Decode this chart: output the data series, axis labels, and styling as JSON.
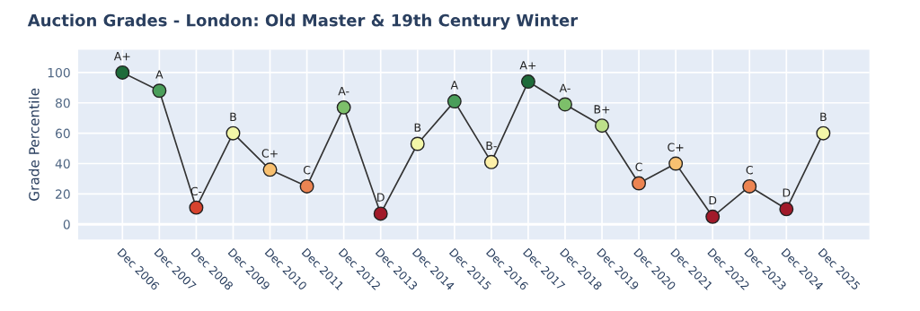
{
  "chart_data": {
    "type": "line",
    "title": "Auction Grades - London: Old Master & 19th Century Winter",
    "ylabel": "Grade Percentile",
    "categories": [
      "Dec 2006",
      "Dec 2007",
      "Dec 2008",
      "Dec 2009",
      "Dec 2010",
      "Dec 2011",
      "Dec 2012",
      "Dec 2013",
      "Dec 2014",
      "Dec 2015",
      "Dec 2016",
      "Dec 2017",
      "Dec 2018",
      "Dec 2019",
      "Dec 2020",
      "Dec 2021",
      "Dec 2022",
      "Dec 2023",
      "Dec 2024",
      "Dec 2025"
    ],
    "series": [
      {
        "color": "#333333",
        "values": [
          100,
          88,
          11,
          60,
          36,
          25,
          77,
          7,
          53,
          81,
          41,
          94,
          79,
          65,
          27,
          40,
          5,
          25,
          10,
          60
        ],
        "value_labels": [
          "A+",
          "A",
          "C-",
          "B",
          "C+",
          "C",
          "A-",
          "D",
          "B",
          "A",
          "B-",
          "A+",
          "A-",
          "B+",
          "C",
          "C+",
          "D",
          "C",
          "D",
          "B"
        ],
        "colors": [
          "#1e6b3a",
          "#4a9e5a",
          "#d7432e",
          "#f3f7a8",
          "#f8c070",
          "#ec8452",
          "#7dbf6a",
          "#a11a2a",
          "#f3f7a8",
          "#4a9e5a",
          "#fdf0a8",
          "#1e6b3a",
          "#7dbf6a",
          "#bde08a",
          "#ec8452",
          "#f8c070",
          "#a11a2a",
          "#ec8452",
          "#a11a2a",
          "#f3f7a8"
        ]
      }
    ],
    "ylim": [
      -10,
      115
    ],
    "yticks": [
      0,
      20,
      40,
      60,
      80,
      100
    ],
    "grid": true,
    "marker": "circle",
    "line_style": "solid"
  }
}
